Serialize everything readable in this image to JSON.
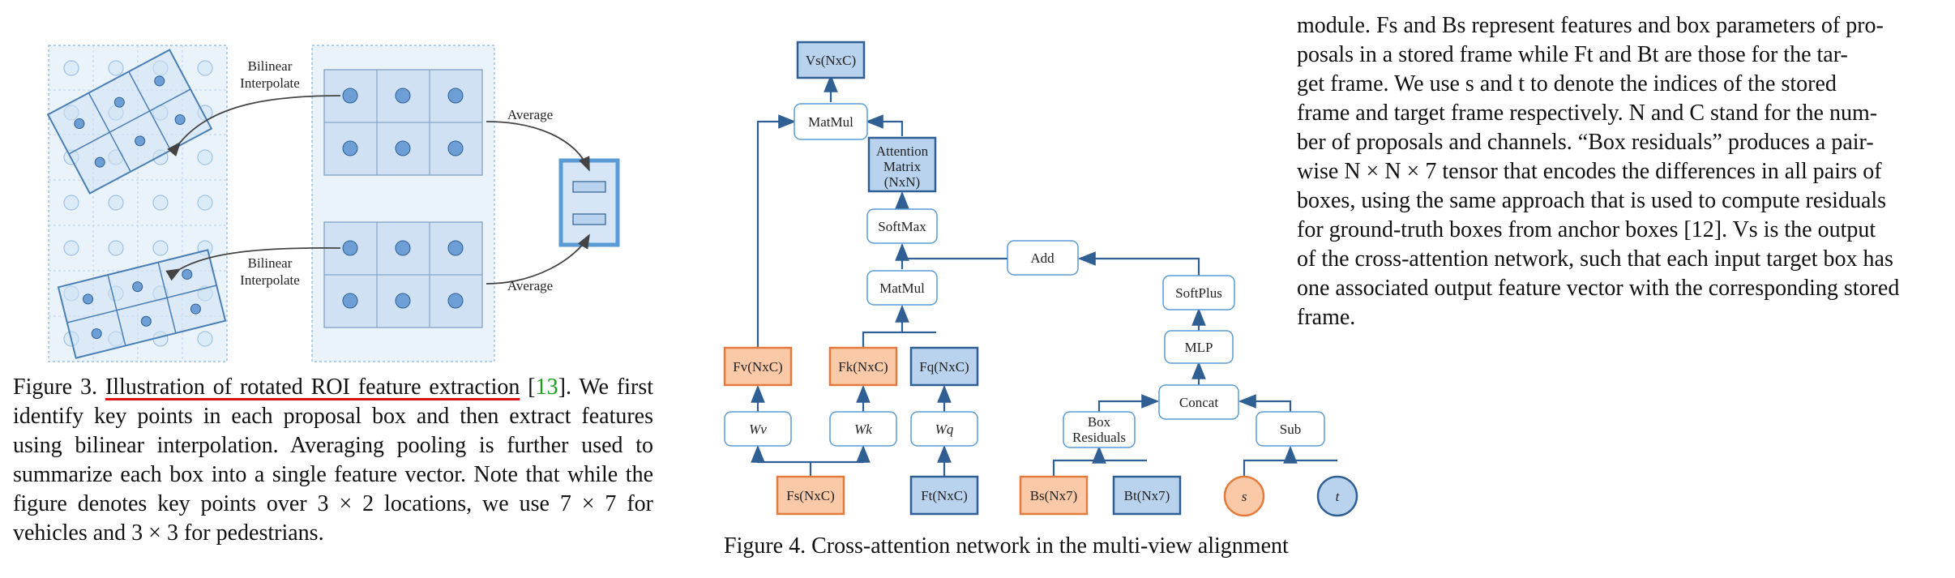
{
  "figure3": {
    "label_bilinear_1": [
      "Bilinear",
      "Interpolate"
    ],
    "label_bilinear_2": [
      "Bilinear",
      "Interpolate"
    ],
    "label_average_1": "Average",
    "label_average_2": "Average",
    "caption_prefix": "Figure 3.",
    "caption_title": "Illustration of rotated ROI feature extraction",
    "caption_cite": "13",
    "caption_rest": "We first identify key points in each proposal box and then extract features using bilinear interpolation. Averaging pooling is further used to summarize each box into a single feature vector. Note that while the figure denotes key points over 3 × 2 locations, we use 7 × 7 for vehicles and 3 × 3 for pedestrians."
  },
  "figure4": {
    "nodes": {
      "vs": "Vs(NxC)",
      "matmul_top": "MatMul",
      "attention": [
        "Attention",
        "Matrix",
        "(NxN)"
      ],
      "softmax": "SoftMax",
      "add": "Add",
      "matmul_mid": "MatMul",
      "softplus": "SoftPlus",
      "mlp": "MLP",
      "concat": "Concat",
      "fv": "Fv(NxC)",
      "fk": "Fk(NxC)",
      "fq": "Fq(NxC)",
      "wv": "Wv",
      "wk": "Wk",
      "wq": "Wq",
      "box_residuals": [
        "Box",
        "Residuals"
      ],
      "sub": "Sub",
      "fs": "Fs(NxC)",
      "ft": "Ft(NxC)",
      "bs": "Bs(Nx7)",
      "bt": "Bt(Nx7)",
      "s": "s",
      "t": "t"
    },
    "colors": {
      "orange_fill": "#f9c9a8",
      "orange_stroke": "#e27b3c",
      "blue_fill": "#b9d3ee",
      "blue_stroke": "#2f5f93",
      "white_stroke": "#5a9bd5"
    },
    "caption": "Figure 4. Cross-attention network in the multi-view alignment"
  },
  "body_text": {
    "lines": [
      "module. Fs and Bs represent features and box parameters of pro-",
      "posals in a stored frame while Ft and Bt are those for the tar-",
      "get frame. We use s and t to denote the indices of the stored",
      "frame and target frame respectively. N and C stand for the num-",
      "ber of proposals and channels. “Box residuals” produces a pair-",
      "wise N × N × 7 tensor that encodes the differences in all pairs of",
      "boxes, using the same approach that is used to compute residuals",
      "for ground-truth boxes from anchor boxes [12]. Vs is the output",
      "of the cross-attention network, such that each input target box has",
      "one associated output feature vector with the corresponding stored",
      "frame."
    ]
  }
}
